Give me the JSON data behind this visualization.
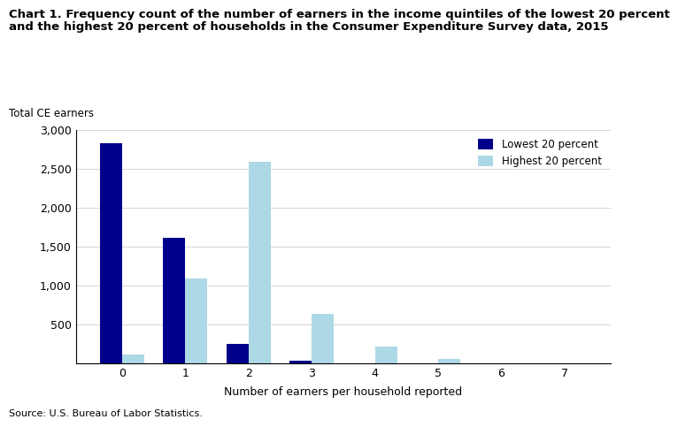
{
  "title_line1": "Chart 1. Frequency count of the number of earners in the income quintiles of the lowest 20 percent",
  "title_line2": "and the highest 20 percent of households in the Consumer Expenditure Survey data, 2015",
  "ylabel": "Total CE earners",
  "xlabel": "Number of earners per household reported",
  "source": "Source: U.S. Bureau of Labor Statistics.",
  "categories": [
    0,
    1,
    2,
    3,
    4,
    5,
    6,
    7
  ],
  "lowest_20": [
    2820,
    1610,
    245,
    30,
    0,
    0,
    0,
    0
  ],
  "highest_20": [
    105,
    1090,
    2590,
    630,
    210,
    55,
    0,
    0
  ],
  "color_lowest": "#00008B",
  "color_highest": "#ADD8E6",
  "ylim": [
    0,
    3000
  ],
  "yticks": [
    0,
    500,
    1000,
    1500,
    2000,
    2500,
    3000
  ],
  "legend_lowest": "Lowest 20 percent",
  "legend_highest": "Highest 20 percent",
  "bar_width": 0.35
}
